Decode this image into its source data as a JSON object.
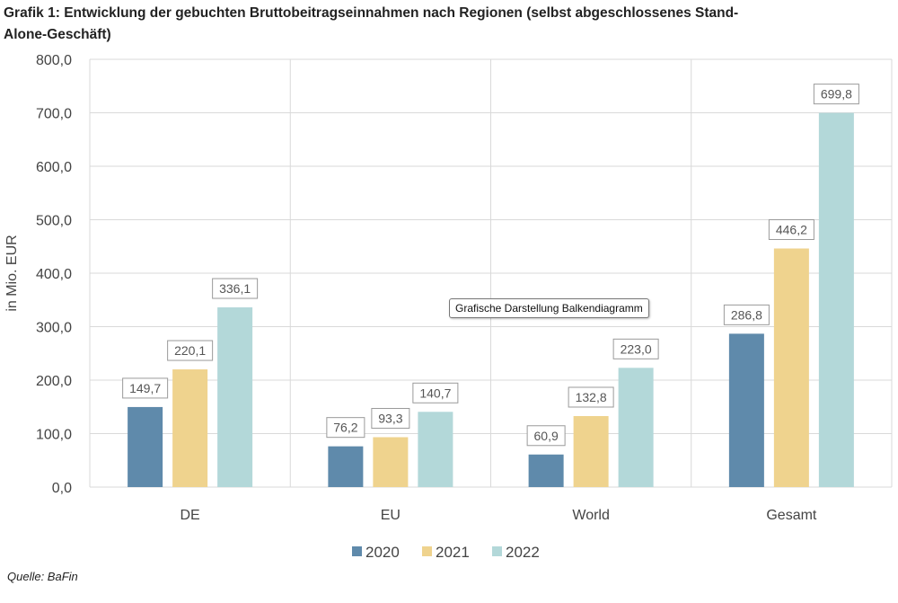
{
  "title": {
    "line1": "Grafik 1: Entwicklung der gebuchten Bruttobeitragseinnahmen nach Regionen (selbst abgeschlossenes Stand-",
    "line2": "Alone-Geschäft)"
  },
  "source": "Quelle: BaFin",
  "tooltip": "Grafische Darstellung Balkendiagramm",
  "colors": {
    "2020": "#5f8aab",
    "2021": "#efd38e",
    "2022": "#b3d8d9",
    "grid": "#d9d9d9"
  },
  "chart_data": {
    "type": "bar",
    "title": "Grafik 1: Entwicklung der gebuchten Bruttobeitragseinnahmen nach Regionen (selbst abgeschlossenes Stand-Alone-Geschäft)",
    "categories": [
      "DE",
      "EU",
      "World",
      "Gesamt"
    ],
    "series": [
      {
        "name": "2020",
        "values": [
          149.7,
          76.2,
          60.9,
          286.8
        ],
        "labels": [
          "149,7",
          "76,2",
          "60,9",
          "286,8"
        ]
      },
      {
        "name": "2021",
        "values": [
          220.1,
          93.3,
          132.8,
          446.2
        ],
        "labels": [
          "220,1",
          "93,3",
          "132,8",
          "446,2"
        ]
      },
      {
        "name": "2022",
        "values": [
          336.1,
          140.7,
          223.0,
          699.8
        ],
        "labels": [
          "336,1",
          "140,7",
          "223,0",
          "699,8"
        ]
      }
    ],
    "ylabel": "in Mio. EUR",
    "xlabel": "",
    "ylim": [
      0,
      800
    ],
    "yticks": [
      "0,0",
      "100,0",
      "200,0",
      "300,0",
      "400,0",
      "500,0",
      "600,0",
      "700,0",
      "800,0"
    ],
    "grid": true,
    "legend": "bottom"
  }
}
